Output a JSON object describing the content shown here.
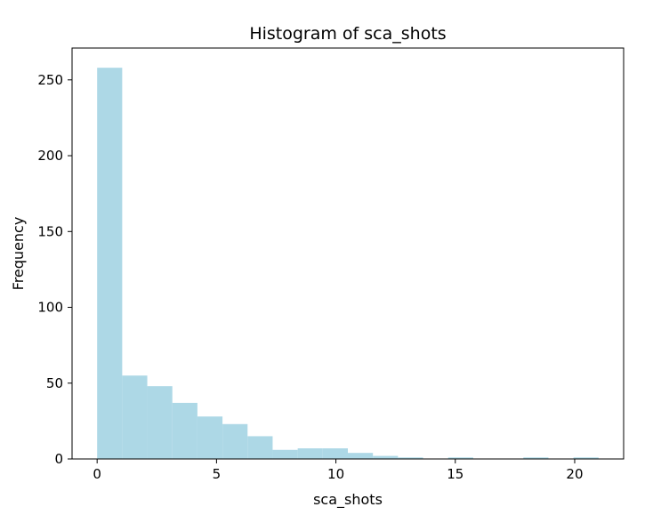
{
  "chart_data": {
    "type": "bar",
    "title": "Histogram of sca_shots",
    "xlabel": "sca_shots",
    "ylabel": "Frequency",
    "bar_color": "#add8e6",
    "grid": false,
    "legend": "none",
    "xlim": [
      -1.05,
      22.05
    ],
    "ylim": [
      0,
      271
    ],
    "xticks": [
      0,
      5,
      10,
      15,
      20
    ],
    "xtick_labels": [
      "0",
      "5",
      "10",
      "15",
      "20"
    ],
    "yticks": [
      0,
      50,
      100,
      150,
      200,
      250
    ],
    "ytick_labels": [
      "0",
      "50",
      "100",
      "150",
      "200",
      "250"
    ],
    "bin_edges": [
      0,
      1.05,
      2.1,
      3.15,
      4.2,
      5.25,
      6.3,
      7.35,
      8.4,
      9.45,
      10.5,
      11.55,
      12.6,
      13.65,
      14.7,
      15.75,
      16.8,
      17.85,
      18.9,
      19.95,
      21
    ],
    "values": [
      258,
      55,
      48,
      37,
      28,
      23,
      15,
      6,
      7,
      7,
      4,
      2,
      1,
      0,
      1,
      0,
      0,
      1,
      0,
      1
    ]
  }
}
